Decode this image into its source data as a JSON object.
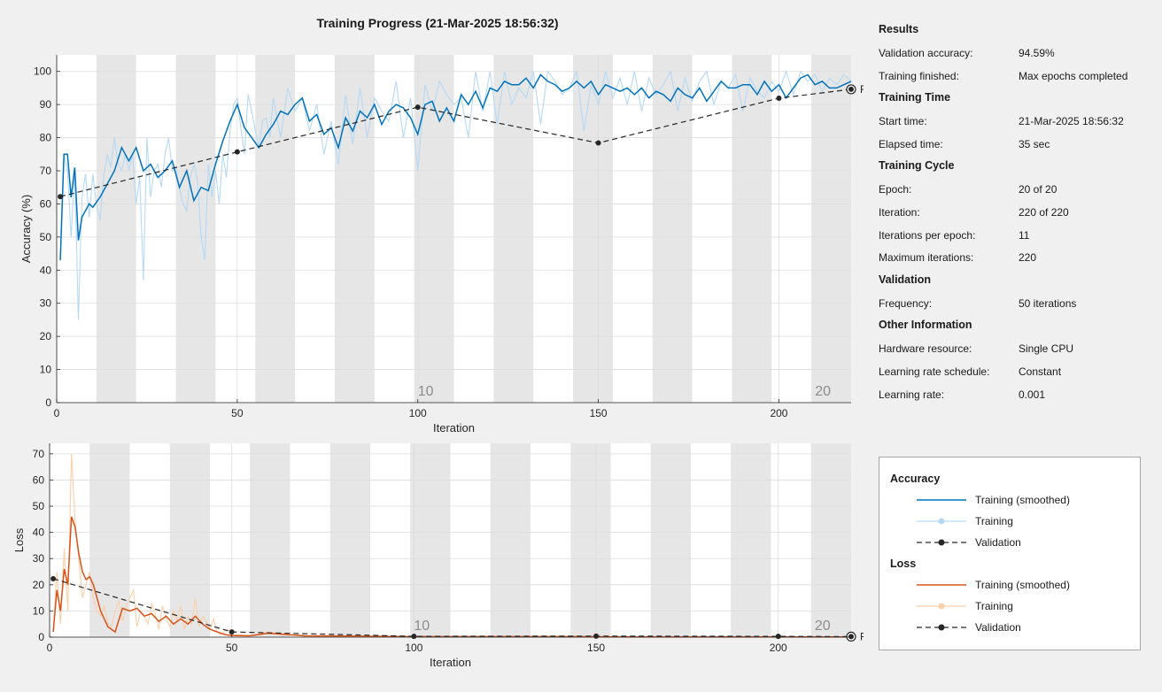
{
  "title": "Training Progress (21-Mar-2025 18:56:32)",
  "colors": {
    "accuracy_smoothed": "#0072bd",
    "accuracy_raw": "#b5d9f5",
    "loss_smoothed": "#d95319",
    "loss_raw": "#fbcfa8",
    "validation": "#262626",
    "epoch_band": "#e6e6e6"
  },
  "info": {
    "sections": [
      {
        "heading": "Results",
        "rows": [
          {
            "key": "Validation accuracy:",
            "value": "94.59%"
          },
          {
            "key": "Training finished:",
            "value": "Max epochs completed"
          }
        ]
      },
      {
        "heading": "Training Time",
        "rows": [
          {
            "key": "Start time:",
            "value": "21-Mar-2025 18:56:32"
          },
          {
            "key": "Elapsed time:",
            "value": "35 sec"
          }
        ]
      },
      {
        "heading": "Training Cycle",
        "rows": [
          {
            "key": "Epoch:",
            "value": "20 of 20"
          },
          {
            "key": "Iteration:",
            "value": "220 of 220"
          },
          {
            "key": "Iterations per epoch:",
            "value": "11"
          },
          {
            "key": "Maximum iterations:",
            "value": "220"
          }
        ]
      },
      {
        "heading": "Validation",
        "rows": [
          {
            "key": "Frequency:",
            "value": "50 iterations"
          }
        ]
      },
      {
        "heading": "Other Information",
        "rows": [
          {
            "key": "Hardware resource:",
            "value": "Single CPU"
          },
          {
            "key": "Learning rate schedule:",
            "value": "Constant"
          },
          {
            "key": "Learning rate:",
            "value": "0.001"
          }
        ]
      }
    ]
  },
  "legend": {
    "accuracy_heading": "Accuracy",
    "loss_heading": "Loss",
    "training_smoothed": "Training (smoothed)",
    "training": "Training",
    "validation": "Validation"
  },
  "chart_data": [
    {
      "type": "line",
      "title": "",
      "xlabel": "Iteration",
      "ylabel": "Accuracy (%)",
      "xlim": [
        0,
        220
      ],
      "ylim": [
        0,
        105
      ],
      "xticks": [
        0,
        50,
        100,
        150,
        200
      ],
      "yticks": [
        0,
        10,
        20,
        30,
        40,
        50,
        60,
        70,
        80,
        90,
        100
      ],
      "iterations_per_epoch": 11,
      "epoch_labels": [
        {
          "epoch": "10",
          "iteration": 100
        },
        {
          "epoch": "20",
          "iteration": 210
        }
      ],
      "final_label": "Final",
      "series": [
        {
          "name": "Training (smoothed)",
          "x": [
            1,
            2,
            3,
            4,
            5,
            6,
            7,
            8,
            9,
            10,
            12,
            14,
            16,
            18,
            20,
            22,
            24,
            26,
            28,
            30,
            32,
            34,
            36,
            38,
            40,
            42,
            44,
            46,
            48,
            50,
            52,
            54,
            56,
            58,
            60,
            62,
            64,
            66,
            68,
            70,
            72,
            74,
            76,
            78,
            80,
            82,
            84,
            86,
            88,
            90,
            92,
            94,
            96,
            98,
            100,
            102,
            104,
            106,
            108,
            110,
            112,
            114,
            116,
            118,
            120,
            122,
            124,
            126,
            128,
            130,
            132,
            134,
            136,
            138,
            140,
            142,
            144,
            146,
            148,
            150,
            152,
            154,
            156,
            158,
            160,
            162,
            164,
            166,
            168,
            170,
            172,
            174,
            176,
            178,
            180,
            182,
            184,
            186,
            188,
            190,
            192,
            194,
            196,
            198,
            200,
            202,
            204,
            206,
            208,
            210,
            212,
            214,
            216,
            218,
            220
          ],
          "y": [
            43,
            75,
            75,
            62,
            71,
            49,
            56,
            58,
            60,
            59,
            62,
            66,
            70,
            77,
            73,
            77,
            70,
            72,
            68,
            70,
            73,
            65,
            70,
            61,
            65,
            64,
            72,
            79,
            85,
            90,
            83,
            80,
            77,
            81,
            84,
            88,
            87,
            90,
            92,
            85,
            87,
            81,
            83,
            77,
            86,
            82,
            88,
            86,
            90,
            84,
            88,
            90,
            89,
            86,
            81,
            90,
            91,
            85,
            89,
            85,
            93,
            90,
            94,
            89,
            95,
            94,
            97,
            96,
            96,
            98,
            95,
            99,
            97,
            96,
            94,
            95,
            97,
            95,
            97,
            93,
            96,
            95,
            94,
            95,
            93,
            95,
            92,
            94,
            93,
            91,
            95,
            93,
            92,
            95,
            91,
            94,
            97,
            95,
            95,
            96,
            96,
            93,
            97,
            94,
            96,
            92,
            95,
            98,
            99,
            96,
            97,
            95,
            95,
            96,
            97
          ]
        },
        {
          "name": "Training",
          "x": [
            1,
            2,
            3,
            4,
            5,
            6,
            7,
            8,
            9,
            10,
            11,
            12,
            13,
            14,
            15,
            16,
            17,
            18,
            19,
            20,
            21,
            22,
            23,
            24,
            25,
            26,
            27,
            28,
            29,
            30,
            31,
            32,
            33,
            34,
            35,
            36,
            37,
            38,
            39,
            40,
            41,
            42,
            43,
            44,
            45,
            46,
            47,
            48,
            49,
            50,
            51,
            52,
            53,
            54,
            55,
            56,
            57,
            58,
            59,
            60,
            62,
            64,
            66,
            68,
            70,
            72,
            74,
            76,
            78,
            80,
            82,
            84,
            86,
            88,
            90,
            92,
            94,
            96,
            98,
            100,
            102,
            104,
            106,
            108,
            110,
            112,
            114,
            116,
            118,
            120,
            122,
            124,
            126,
            128,
            130,
            132,
            134,
            136,
            138,
            140,
            142,
            144,
            146,
            148,
            150,
            152,
            154,
            156,
            158,
            160,
            162,
            164,
            166,
            168,
            170,
            172,
            174,
            176,
            178,
            180,
            182,
            184,
            186,
            188,
            190,
            192,
            194,
            196,
            198,
            200,
            202,
            204,
            206,
            208,
            210,
            212,
            214,
            216,
            218,
            220
          ],
          "y": [
            44,
            75,
            70,
            50,
            70,
            25,
            62,
            69,
            56,
            69,
            60,
            55,
            68,
            75,
            71,
            80,
            72,
            70,
            75,
            70,
            75,
            60,
            68,
            37,
            80,
            62,
            70,
            72,
            65,
            75,
            80,
            70,
            71,
            65,
            60,
            58,
            68,
            72,
            67,
            50,
            43,
            72,
            62,
            70,
            60,
            75,
            68,
            82,
            90,
            92,
            83,
            75,
            93,
            88,
            82,
            77,
            85,
            86,
            80,
            92,
            80,
            95,
            88,
            92,
            82,
            90,
            75,
            85,
            72,
            93,
            78,
            95,
            80,
            92,
            88,
            85,
            97,
            80,
            92,
            70,
            96,
            88,
            97,
            93,
            90,
            92,
            80,
            100,
            88,
            100,
            84,
            100,
            90,
            95,
            92,
            100,
            84,
            100,
            97,
            93,
            95,
            100,
            82,
            96,
            90,
            100,
            92,
            98,
            90,
            100,
            88,
            98,
            93,
            96,
            100,
            88,
            98,
            91,
            97,
            100,
            90,
            97,
            95,
            99,
            88,
            98,
            94,
            92,
            97,
            94,
            100,
            93,
            100,
            97,
            99,
            94,
            98,
            96,
            99,
            97
          ]
        },
        {
          "name": "Validation",
          "x": [
            1,
            50,
            100,
            150,
            200,
            220
          ],
          "y": [
            62.2,
            75.7,
            89.2,
            78.4,
            91.9,
            94.6
          ]
        }
      ]
    },
    {
      "type": "line",
      "title": "",
      "xlabel": "Iteration",
      "ylabel": "Loss",
      "xlim": [
        0,
        220
      ],
      "ylim": [
        0,
        74
      ],
      "xticks": [
        0,
        50,
        100,
        150,
        200
      ],
      "yticks": [
        0,
        10,
        20,
        30,
        40,
        50,
        60,
        70
      ],
      "iterations_per_epoch": 11,
      "epoch_labels": [
        {
          "epoch": "10",
          "iteration": 100
        },
        {
          "epoch": "20",
          "iteration": 210
        }
      ],
      "final_label": "Final",
      "series": [
        {
          "name": "Training (smoothed)",
          "x": [
            1,
            2,
            3,
            4,
            5,
            6,
            7,
            8,
            9,
            10,
            11,
            12,
            13,
            14,
            16,
            18,
            20,
            22,
            24,
            26,
            28,
            30,
            32,
            34,
            36,
            38,
            40,
            42,
            44,
            46,
            48,
            50,
            55,
            60,
            70,
            80,
            90,
            100,
            120,
            140,
            160,
            180,
            200,
            220
          ],
          "y": [
            2,
            18,
            10,
            26,
            20,
            46,
            42,
            32,
            25,
            22,
            23,
            20,
            15,
            10,
            4,
            2,
            11,
            10,
            11,
            8,
            9,
            6,
            8,
            5,
            7,
            5,
            8,
            5,
            3,
            2,
            1,
            0.6,
            0.5,
            1.5,
            0.5,
            0.4,
            0.3,
            0.2,
            0.2,
            0.2,
            0.1,
            0.1,
            0.1,
            0.1
          ]
        },
        {
          "name": "Training",
          "x": [
            1,
            2,
            3,
            4,
            5,
            6,
            7,
            8,
            9,
            10,
            11,
            12,
            13,
            14,
            15,
            16,
            17,
            18,
            19,
            20,
            21,
            22,
            23,
            24,
            25,
            26,
            27,
            28,
            29,
            30,
            31,
            32,
            33,
            34,
            35,
            36,
            37,
            38,
            39,
            40,
            41,
            42,
            43,
            44,
            45,
            46,
            47,
            48,
            49,
            50,
            55,
            60,
            70,
            80,
            90,
            100,
            120,
            140,
            160,
            180,
            200,
            220
          ],
          "y": [
            2,
            25,
            5,
            34,
            10,
            70,
            44,
            30,
            15,
            20,
            25,
            15,
            10,
            8,
            12,
            5,
            4,
            10,
            14,
            6,
            12,
            15,
            18,
            4,
            10,
            8,
            5,
            13,
            9,
            3,
            12,
            7,
            4,
            10,
            6,
            12,
            3,
            8,
            5,
            15,
            4,
            8,
            6,
            3,
            7,
            2,
            1,
            2,
            3,
            1,
            0.5,
            2,
            0.3,
            0.4,
            0.2,
            0.3,
            0.2,
            0.2,
            0.1,
            0.1,
            0.1,
            0.1
          ]
        },
        {
          "name": "Validation",
          "x": [
            1,
            50,
            100,
            150,
            200,
            220
          ],
          "y": [
            22.3,
            2.0,
            0.3,
            0.4,
            0.3,
            0.2
          ]
        }
      ]
    }
  ]
}
